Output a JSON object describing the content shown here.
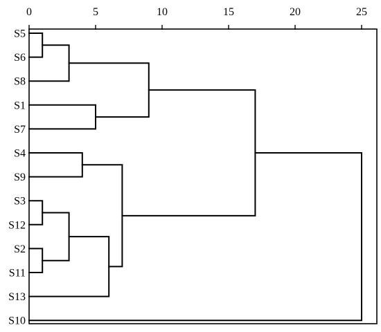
{
  "chart_data": {
    "type": "dendrogram",
    "title": "",
    "xlabel": "",
    "ylabel": "",
    "x_axis_position": "top",
    "xlim": [
      0,
      26.5
    ],
    "x_ticks": [
      0,
      5,
      10,
      15,
      20,
      25
    ],
    "grid": false,
    "leaves": [
      "S5",
      "S6",
      "S8",
      "S1",
      "S7",
      "S4",
      "S9",
      "S3",
      "S12",
      "S2",
      "S11",
      "S13",
      "S10"
    ],
    "merges": [
      {
        "id": "m1",
        "a": "S5",
        "b": "S6",
        "height": 1
      },
      {
        "id": "m2",
        "a": "S12",
        "b": "S3",
        "height": 1
      },
      {
        "id": "m3",
        "a": "S2",
        "b": "S11",
        "height": 1
      },
      {
        "id": "m4",
        "a": "m1",
        "b": "S8",
        "height": 3
      },
      {
        "id": "m5",
        "a": "m2",
        "b": "m3",
        "height": 3
      },
      {
        "id": "m6",
        "a": "S4",
        "b": "S9",
        "height": 4
      },
      {
        "id": "m7",
        "a": "S1",
        "b": "S7",
        "height": 5
      },
      {
        "id": "m8",
        "a": "m5",
        "b": "S13",
        "height": 6
      },
      {
        "id": "m9",
        "a": "m6",
        "b": "m8",
        "height": 7
      },
      {
        "id": "m10",
        "a": "m4",
        "b": "m7",
        "height": 9
      },
      {
        "id": "m11",
        "a": "m10",
        "b": "m9",
        "height": 17
      },
      {
        "id": "m12",
        "a": "m11",
        "b": "S10",
        "height": 25
      }
    ]
  }
}
